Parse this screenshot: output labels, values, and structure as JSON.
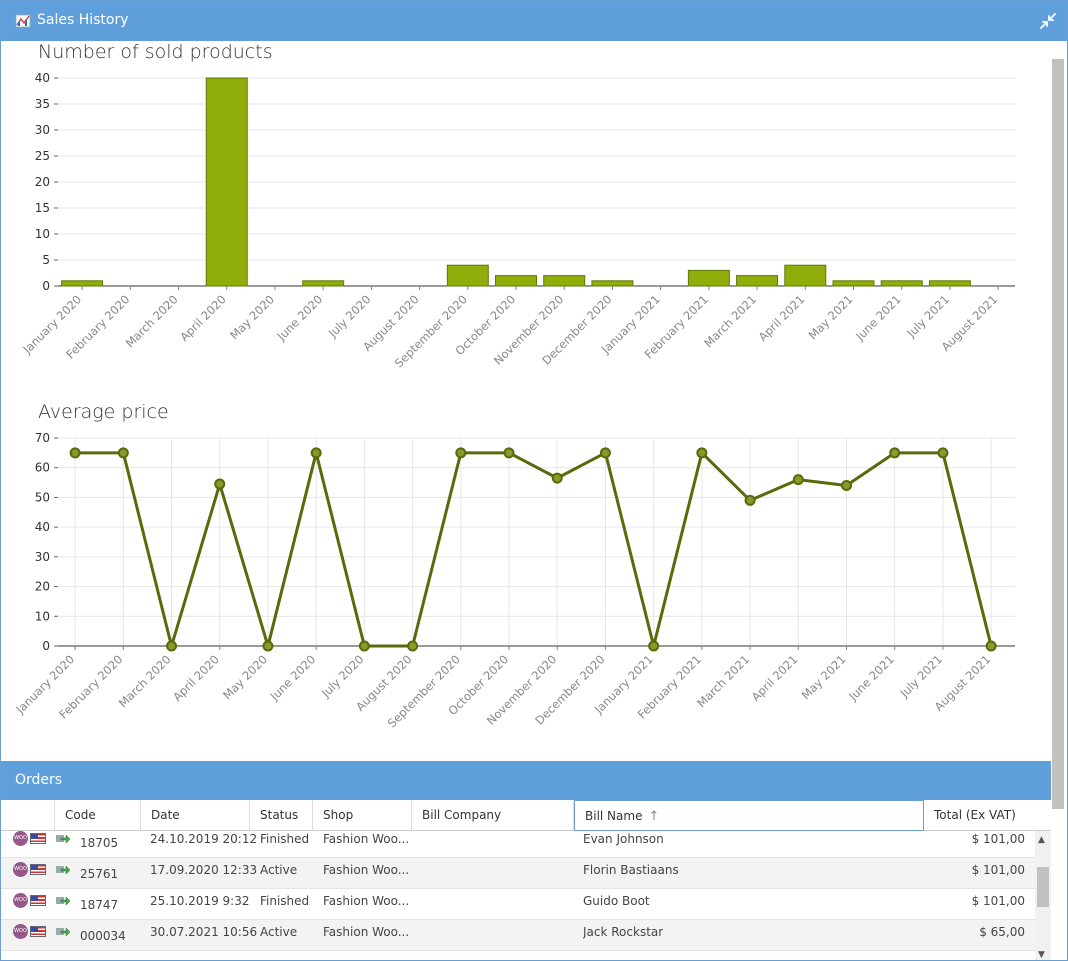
{
  "window": {
    "title": "Sales History",
    "accent": "#5fa0dc",
    "restore_icon": "compress-arrows-icon",
    "app_icon": "chart-icon"
  },
  "chart_data": [
    {
      "type": "bar",
      "title": "Number of sold products",
      "color": "#8fae0c",
      "categories": [
        "January 2020",
        "February 2020",
        "March 2020",
        "April 2020",
        "May 2020",
        "June 2020",
        "July 2020",
        "August 2020",
        "September 2020",
        "October 2020",
        "November 2020",
        "December 2020",
        "January 2021",
        "February 2021",
        "March 2021",
        "April 2021",
        "May 2021",
        "June 2021",
        "July 2021",
        "August 2021"
      ],
      "values": [
        1,
        0,
        0,
        40,
        0,
        1,
        0,
        0,
        4,
        2,
        2,
        1,
        0,
        3,
        2,
        4,
        1,
        1,
        1,
        0
      ],
      "ylim": [
        0,
        40
      ],
      "yticks": [
        0,
        5,
        10,
        15,
        20,
        25,
        30,
        35,
        40
      ],
      "grid": true
    },
    {
      "type": "line",
      "title": "Average price",
      "color": "#556b0c",
      "categories": [
        "January 2020",
        "February 2020",
        "March 2020",
        "April 2020",
        "May 2020",
        "June 2020",
        "July 2020",
        "August 2020",
        "September 2020",
        "October 2020",
        "November 2020",
        "December 2020",
        "January 2021",
        "February 2021",
        "March 2021",
        "April 2021",
        "May 2021",
        "June 2021",
        "July 2021",
        "August 2021"
      ],
      "values": [
        65,
        65,
        0,
        54.5,
        0,
        65,
        0,
        0,
        65,
        65,
        56.5,
        65,
        0,
        65,
        49,
        56,
        54,
        65,
        65,
        0
      ],
      "ylim": [
        0,
        70
      ],
      "yticks": [
        0,
        10,
        20,
        30,
        40,
        50,
        60,
        70
      ],
      "grid": true
    }
  ],
  "orders": {
    "title": "Orders",
    "columns": [
      "Code",
      "Date",
      "Status",
      "Shop",
      "Bill Company",
      "Bill Name",
      "Total (Ex VAT)"
    ],
    "sort_arrow": "↑",
    "rows": [
      {
        "code": "18705",
        "date": "24.10.2019 20:12",
        "status": "Finished",
        "shop": "Fashion Woo...",
        "company": "",
        "name": "Evan Johnson",
        "total": "$ 101,00"
      },
      {
        "code": "25761",
        "date": "17.09.2020 12:33",
        "status": "Active",
        "shop": "Fashion Woo...",
        "company": "",
        "name": "Florin Bastiaans",
        "total": "$ 101,00"
      },
      {
        "code": "18747",
        "date": "25.10.2019 9:32",
        "status": "Finished",
        "shop": "Fashion Woo...",
        "company": "",
        "name": "Guido Boot",
        "total": "$ 101,00"
      },
      {
        "code": "000034",
        "date": "30.07.2021 10:56",
        "status": "Active",
        "shop": "Fashion Woo...",
        "company": "",
        "name": "Jack Rockstar",
        "total": "$ 65,00"
      }
    ],
    "woo_badge": "WOO"
  }
}
